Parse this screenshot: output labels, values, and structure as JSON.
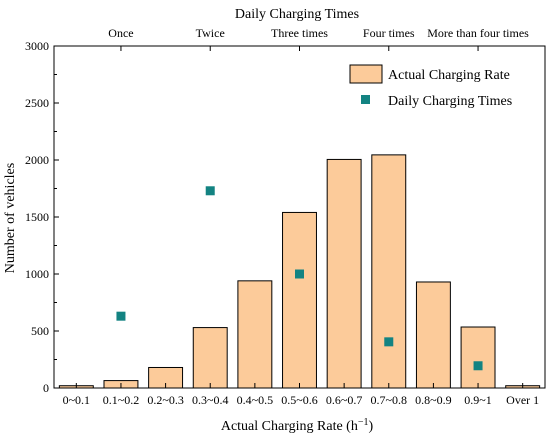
{
  "chart_data": {
    "type": "bar",
    "categories": [
      "0~0.1",
      "0.1~0.2",
      "0.2~0.3",
      "0.3~0.4",
      "0.4~0.5",
      "0.5~0.6",
      "0.6~0.7",
      "0.7~0.8",
      "0.8~0.9",
      "0.9~1",
      "Over 1"
    ],
    "title": "Daily Charging Times",
    "xlabel": "Actual Charging Rate (h",
    "xlabel_sup": "−1",
    "xlabel_close": ")",
    "ylabel": "Number of vehicles",
    "ylim": [
      0,
      3000
    ],
    "yticks": [
      0,
      500,
      1000,
      1500,
      2000,
      2500,
      3000
    ],
    "series": [
      {
        "name": "Actual Charging Rate",
        "kind": "bar",
        "color": "#FCCB9A",
        "values": [
          20,
          65,
          180,
          530,
          940,
          1540,
          2005,
          2045,
          930,
          535,
          20
        ]
      },
      {
        "name": "Daily Charging Times",
        "kind": "scatter",
        "color": "#138382",
        "points": [
          {
            "x": "0.1~0.2",
            "y": 630
          },
          {
            "x": "0.3~0.4",
            "y": 1730
          },
          {
            "x": "0.5~0.6",
            "y": 1000
          },
          {
            "x": "0.7~0.8",
            "y": 405
          },
          {
            "x": "0.9~1",
            "y": 195
          }
        ]
      }
    ],
    "top_axis": {
      "title": "Daily Charging Times",
      "labels": [
        {
          "text": "Once",
          "at": "0.1~0.2"
        },
        {
          "text": "Twice",
          "at": "0.3~0.4"
        },
        {
          "text": "Three times",
          "at": "0.5~0.6"
        },
        {
          "text": "Four times",
          "at": "0.7~0.8"
        },
        {
          "text": "More than four times",
          "at": "0.9~1"
        }
      ]
    },
    "legend": {
      "placement": "top-right"
    },
    "grid": false
  }
}
